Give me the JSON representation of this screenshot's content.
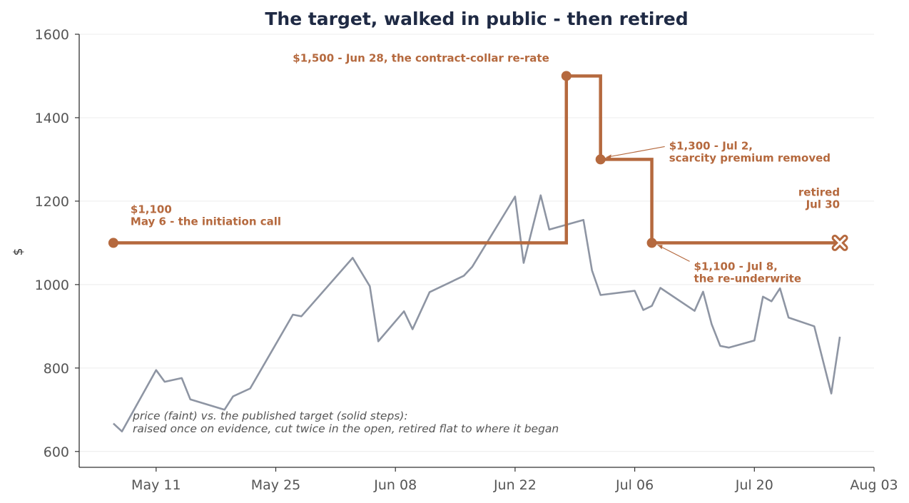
{
  "chart_data": {
    "type": "line",
    "title": "The target, walked in public - then retired",
    "xlabel": "",
    "ylabel": "$",
    "xlim": [
      "2026-05-02",
      "2026-08-03"
    ],
    "ylim": [
      562,
      1600
    ],
    "x_ticks": [
      {
        "date": "2026-05-11",
        "label": "May 11"
      },
      {
        "date": "2026-05-25",
        "label": "May 25"
      },
      {
        "date": "2026-06-08",
        "label": "Jun 08"
      },
      {
        "date": "2026-06-22",
        "label": "Jun 22"
      },
      {
        "date": "2026-07-06",
        "label": "Jul 06"
      },
      {
        "date": "2026-07-20",
        "label": "Jul 20"
      },
      {
        "date": "2026-08-03",
        "label": "Aug 03"
      }
    ],
    "y_ticks": [
      600,
      800,
      1000,
      1200,
      1400,
      1600
    ],
    "grid": "horizontal",
    "colors": {
      "price": "#8e95a3",
      "target": "#b5693e",
      "title": "#1f2a44",
      "grid": "#ececec",
      "axis": "#333333"
    },
    "series": [
      {
        "role": "price",
        "points": [
          [
            "2026-05-06",
            667
          ],
          [
            "2026-05-07",
            648
          ],
          [
            "2026-05-11",
            795
          ],
          [
            "2026-05-12",
            767
          ],
          [
            "2026-05-14",
            776
          ],
          [
            "2026-05-15",
            725
          ],
          [
            "2026-05-19",
            700
          ],
          [
            "2026-05-20",
            732
          ],
          [
            "2026-05-22",
            751
          ],
          [
            "2026-05-27",
            928
          ],
          [
            "2026-05-28",
            924
          ],
          [
            "2026-06-03",
            1064
          ],
          [
            "2026-06-05",
            996
          ],
          [
            "2026-06-06",
            864
          ],
          [
            "2026-06-09",
            936
          ],
          [
            "2026-06-10",
            893
          ],
          [
            "2026-06-12",
            982
          ],
          [
            "2026-06-16",
            1021
          ],
          [
            "2026-06-17",
            1043
          ],
          [
            "2026-06-22",
            1211
          ],
          [
            "2026-06-23",
            1052
          ],
          [
            "2026-06-25",
            1214
          ],
          [
            "2026-06-26",
            1132
          ],
          [
            "2026-06-30",
            1155
          ],
          [
            "2026-07-01",
            1034
          ],
          [
            "2026-07-02",
            975
          ],
          [
            "2026-07-06",
            985
          ],
          [
            "2026-07-07",
            939
          ],
          [
            "2026-07-08",
            949
          ],
          [
            "2026-07-09",
            992
          ],
          [
            "2026-07-13",
            937
          ],
          [
            "2026-07-14",
            983
          ],
          [
            "2026-07-15",
            905
          ],
          [
            "2026-07-16",
            853
          ],
          [
            "2026-07-17",
            849
          ],
          [
            "2026-07-20",
            866
          ],
          [
            "2026-07-21",
            971
          ],
          [
            "2026-07-22",
            960
          ],
          [
            "2026-07-23",
            991
          ],
          [
            "2026-07-24",
            921
          ],
          [
            "2026-07-27",
            900
          ],
          [
            "2026-07-29",
            739
          ],
          [
            "2026-07-30",
            875
          ]
        ]
      },
      {
        "role": "target",
        "shape": "step",
        "points": [
          [
            "2026-05-06",
            1100
          ],
          [
            "2026-06-28",
            1500
          ],
          [
            "2026-07-02",
            1300
          ],
          [
            "2026-07-08",
            1100
          ],
          [
            "2026-07-30",
            1100
          ]
        ],
        "markers": [
          "2026-05-06",
          "2026-06-28",
          "2026-07-02",
          "2026-07-08"
        ],
        "end_marker": "x"
      }
    ],
    "annotations": [
      {
        "text": [
          "$1,100",
          "May 6 - the initiation call"
        ],
        "x": "2026-05-06",
        "y": 1100,
        "align": "start"
      },
      {
        "text": [
          "$1,500 - Jun 28, the contract-collar re-rate"
        ],
        "x": "2026-06-28",
        "y": 1500,
        "align": "end"
      },
      {
        "text": [
          "$1,300 - Jul 2,",
          "scarcity premium removed"
        ],
        "x": "2026-07-02",
        "y": 1300,
        "align": "start",
        "arrow": true
      },
      {
        "text": [
          "$1,100 - Jul 8,",
          "the re-underwrite"
        ],
        "x": "2026-07-08",
        "y": 1100,
        "align": "start",
        "arrow": true
      },
      {
        "text": [
          "retired",
          "Jul 30"
        ],
        "x": "2026-07-30",
        "y": 1100,
        "align": "end"
      }
    ],
    "note": [
      "price (faint) vs. the published target (solid steps):",
      "raised once on evidence, cut twice in the open, retired flat to where it began"
    ]
  }
}
